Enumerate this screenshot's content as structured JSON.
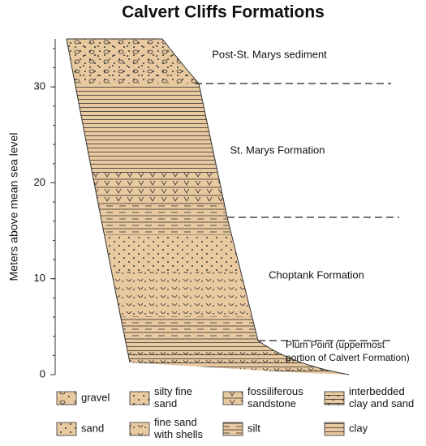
{
  "title": "Calvert Cliffs Formations",
  "axis": {
    "label": "Meters above mean sea level",
    "ylim": [
      0,
      35
    ],
    "yticks": [
      0,
      10,
      20,
      30
    ]
  },
  "formations": [
    "Post-St. Marys sediment",
    "St. Marys Formation",
    "Choptank Formation",
    "Plum Point (uppermost",
    "portion of Calvert Formation)"
  ],
  "legend": [
    {
      "lines": [
        "gravel"
      ]
    },
    {
      "lines": [
        "silty fine",
        "sand"
      ]
    },
    {
      "lines": [
        "fossiliferous",
        "sandstone"
      ]
    },
    {
      "lines": [
        "interbedded",
        "clay and sand"
      ]
    },
    {
      "lines": [
        "sand"
      ]
    },
    {
      "lines": [
        "fine sand",
        "with shells"
      ]
    },
    {
      "lines": [
        "silt"
      ]
    },
    {
      "lines": [
        "clay"
      ]
    }
  ]
}
